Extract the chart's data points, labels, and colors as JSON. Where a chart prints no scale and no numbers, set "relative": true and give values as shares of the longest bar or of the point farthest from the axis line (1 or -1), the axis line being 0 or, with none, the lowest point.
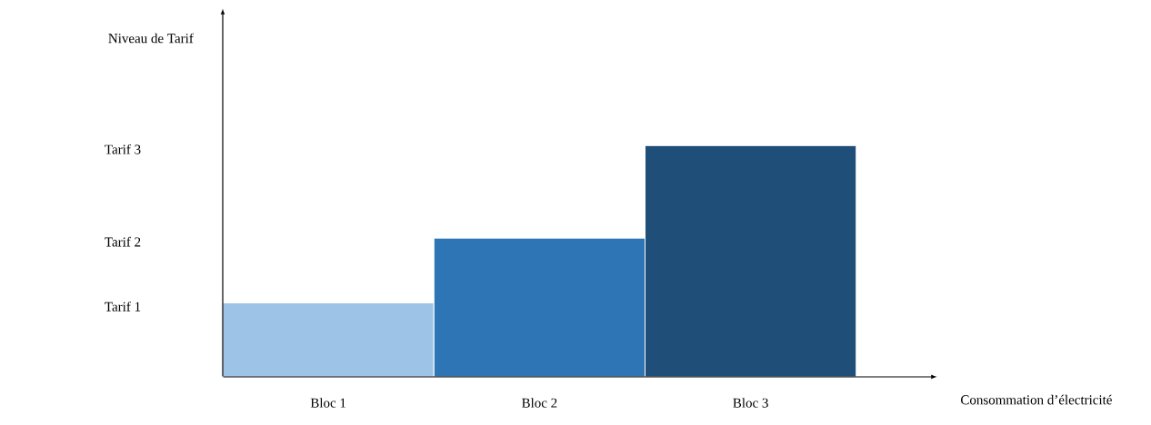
{
  "chart_data": {
    "type": "bar",
    "relative": true,
    "xlabel": "Consommation d’électricité",
    "categories": [
      "Bloc 1",
      "Bloc 2",
      "Bloc 3"
    ],
    "values": [
      0.32,
      0.6,
      1
    ],
    "colors": [
      "#9dc3e6",
      "#2e75b6",
      "#1f4e79"
    ],
    "annotations": [
      "Tarif 1",
      "Tarif 2",
      "Tarif 3",
      "Niveau de Tarif"
    ]
  }
}
